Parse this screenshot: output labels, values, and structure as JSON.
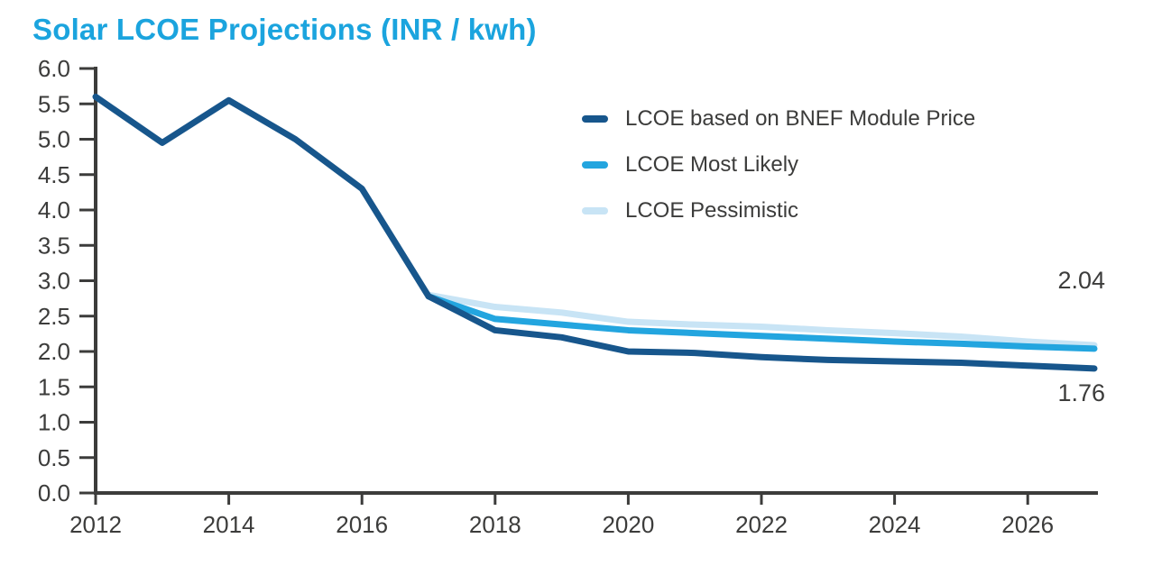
{
  "chart_data": {
    "type": "line",
    "title": "Solar LCOE Projections (INR / kwh)",
    "title_color": "#1ba4de",
    "axis_color": "#3c3c3b",
    "text_color": "#3c3c3b",
    "xlabel": "",
    "ylabel": "",
    "x_range": [
      2012,
      2027
    ],
    "ylim": [
      0.0,
      6.0
    ],
    "x_ticks": [
      "2012",
      "2014",
      "2016",
      "2018",
      "2020",
      "2022",
      "2024",
      "2026"
    ],
    "y_ticks": [
      "0.0",
      "0.5",
      "1.0",
      "1.5",
      "2.0",
      "2.5",
      "3.0",
      "3.5",
      "4.0",
      "4.5",
      "5.0",
      "5.5",
      "6.0"
    ],
    "grid": false,
    "legend_position": "inside-upper-right",
    "series": [
      {
        "name": "LCOE based on BNEF Module Price",
        "color": "#17568c",
        "x": [
          2012,
          2013,
          2014,
          2015,
          2016,
          2017,
          2018,
          2019,
          2020,
          2021,
          2022,
          2023,
          2024,
          2025,
          2026,
          2027
        ],
        "values": [
          5.6,
          4.95,
          5.55,
          5.0,
          4.3,
          2.78,
          2.3,
          2.2,
          2.0,
          1.98,
          1.92,
          1.88,
          1.86,
          1.84,
          1.8,
          1.76
        ]
      },
      {
        "name": "LCOE Most Likely",
        "color": "#23a5df",
        "x": [
          2017,
          2018,
          2019,
          2020,
          2021,
          2022,
          2023,
          2024,
          2025,
          2026,
          2027
        ],
        "values": [
          2.78,
          2.46,
          2.38,
          2.3,
          2.26,
          2.22,
          2.18,
          2.14,
          2.11,
          2.07,
          2.04
        ]
      },
      {
        "name": "LCOE Pessimistic",
        "color": "#c8e4f5",
        "x": [
          2017,
          2018,
          2019,
          2020,
          2021,
          2022,
          2023,
          2024,
          2025,
          2026,
          2027
        ],
        "values": [
          2.8,
          2.63,
          2.55,
          2.42,
          2.38,
          2.35,
          2.3,
          2.26,
          2.21,
          2.14,
          2.09
        ]
      }
    ],
    "annotations": [
      {
        "text": "2.04",
        "series": "LCOE Most Likely",
        "year": 2027,
        "value": 2.04
      },
      {
        "text": "1.76",
        "series": "LCOE based on BNEF Module Price",
        "year": 2027,
        "value": 1.76
      }
    ]
  }
}
